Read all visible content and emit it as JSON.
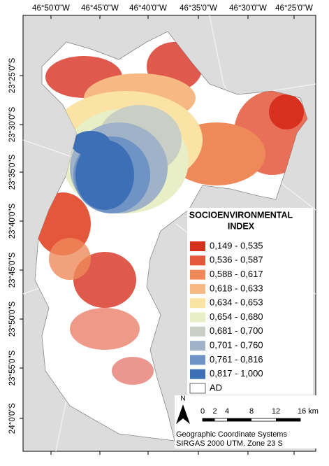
{
  "map": {
    "longitude_labels": [
      "46°50'0\"W",
      "46°45'0\"W",
      "46°40'0\"W",
      "46°35'0\"W",
      "46°30'0\"W",
      "46°25'0\"W"
    ],
    "latitude_labels": [
      "23°25'0\"S",
      "23°30'0\"S",
      "23°35'0\"S",
      "23°40'0\"S",
      "23°45'0\"S",
      "23°50'0\"S",
      "23°55'0\"S",
      "24°0'0\"S"
    ],
    "legend": {
      "title": [
        "SOCIOENVIRONMENTAL",
        "INDEX"
      ],
      "items": [
        {
          "label": "0,149 - 0,535",
          "color": "#d7301f"
        },
        {
          "label": "0,536 - 0,587",
          "color": "#e4573b"
        },
        {
          "label": "0,588 - 0,617",
          "color": "#ee8a5a"
        },
        {
          "label": "0,618 - 0,633",
          "color": "#f7b983"
        },
        {
          "label": "0,634 - 0,653",
          "color": "#fbe3a6"
        },
        {
          "label": "0,654 - 0,680",
          "color": "#e8efc6"
        },
        {
          "label": "0,681 - 0,700",
          "color": "#c9cfc4"
        },
        {
          "label": "0,701 - 0,760",
          "color": "#9fb2c8"
        },
        {
          "label": "0,761 - 0,816",
          "color": "#6f93c4"
        },
        {
          "label": "0,817 - 1,000",
          "color": "#3d6fb6"
        },
        {
          "label": "AD",
          "color": "#ffffff"
        }
      ]
    },
    "north": "N",
    "scale_labels": [
      "0",
      "2",
      "4",
      "8",
      "12",
      "16 km"
    ],
    "footer": [
      "Geographic Coordinate Systems",
      "SIRGAS 2000 UTM. Zone 23 S"
    ]
  }
}
